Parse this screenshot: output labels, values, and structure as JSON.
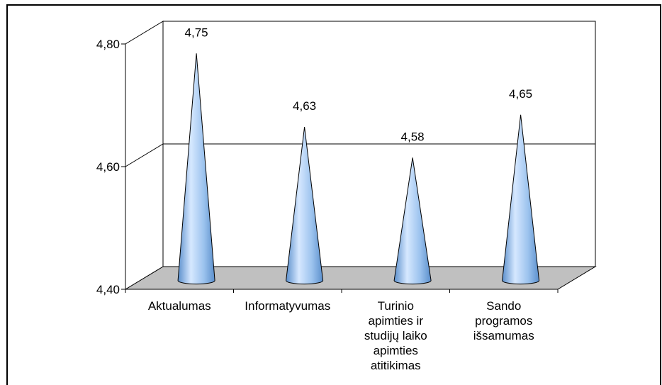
{
  "chart_data": {
    "type": "bar",
    "categories": [
      [
        "Aktualumas"
      ],
      [
        "Informatyvumas"
      ],
      [
        "Turinio",
        "apimties ir",
        "studijų laiko",
        "apimties",
        "atitikimas"
      ],
      [
        "Sando",
        "programos",
        "išsamumas"
      ]
    ],
    "values": [
      4.75,
      4.63,
      4.58,
      4.65
    ],
    "data_labels": [
      "4,75",
      "4,63",
      "4,58",
      "4,65"
    ],
    "y_ticks": [
      {
        "value": 4.4,
        "label": "4,40"
      },
      {
        "value": 4.6,
        "label": "4,60"
      },
      {
        "value": 4.8,
        "label": "4,80"
      }
    ],
    "ylim": [
      4.4,
      4.8
    ],
    "title": "",
    "xlabel": "",
    "ylabel": "",
    "grid": true,
    "mark_shape": "cone",
    "colors": {
      "cone_light": "#d6e8ff",
      "cone_mid": "#9cc3ee",
      "cone_dark": "#5b8fcc",
      "floor": "#c0c0c0"
    }
  }
}
